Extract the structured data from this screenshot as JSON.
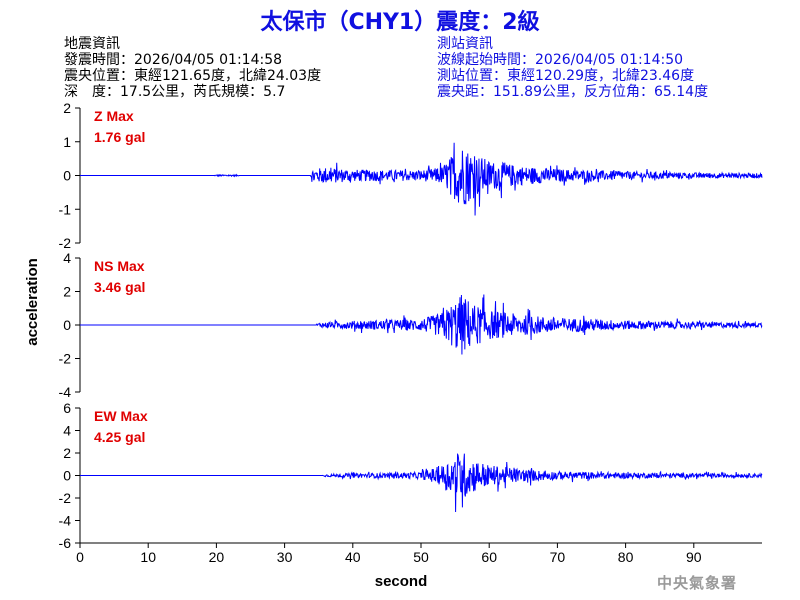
{
  "title": "太保市（CHY1）震度：2級",
  "info_left": [
    "地震資訊",
    "發震時間：2026/04/05 01:14:58",
    "震央位置：東經121.65度，北緯24.03度",
    "深　度：17.5公里，芮氏規模：5.7"
  ],
  "info_right": [
    "測站資訊",
    "波線起始時間：2026/04/05 01:14:50",
    "測站位置：東經120.29度，北緯23.46度",
    "震央距：151.89公里，反方位角：65.14度"
  ],
  "agency": "中央氣象署",
  "colors": {
    "title": "#1010e0",
    "trace": "#0000ff",
    "max_label": "#e00000",
    "axis": "#000000",
    "agency": "#9a9a9a"
  },
  "chart_data": {
    "type": "line",
    "xlabel": "second",
    "ylabel": "acceleration",
    "xlim": [
      0,
      100
    ],
    "xticks": [
      0,
      10,
      20,
      30,
      40,
      50,
      60,
      70,
      80,
      90
    ],
    "grid": false,
    "panels": [
      {
        "name": "Z",
        "max_label": "Z Max",
        "max_value": "1.76 gal",
        "ylim": [
          -2,
          2
        ],
        "yticks": [
          -2,
          -1,
          0,
          1,
          2
        ],
        "series_envelope": [
          {
            "x": 0,
            "amp": 0.0
          },
          {
            "x": 19.5,
            "amp": 0.0
          },
          {
            "x": 20,
            "amp": 0.04
          },
          {
            "x": 23,
            "amp": 0.04
          },
          {
            "x": 23.5,
            "amp": 0.0
          },
          {
            "x": 33.8,
            "amp": 0.0
          },
          {
            "x": 34,
            "amp": 0.35
          },
          {
            "x": 36,
            "amp": 0.45
          },
          {
            "x": 40,
            "amp": 0.32
          },
          {
            "x": 45,
            "amp": 0.3
          },
          {
            "x": 50,
            "amp": 0.28
          },
          {
            "x": 53,
            "amp": 0.45
          },
          {
            "x": 55,
            "amp": 1.3
          },
          {
            "x": 56,
            "amp": 1.76
          },
          {
            "x": 57.5,
            "amp": 1.3
          },
          {
            "x": 60,
            "amp": 0.8
          },
          {
            "x": 65,
            "amp": 0.5
          },
          {
            "x": 70,
            "amp": 0.35
          },
          {
            "x": 80,
            "amp": 0.22
          },
          {
            "x": 90,
            "amp": 0.15
          },
          {
            "x": 100,
            "amp": 0.12
          }
        ]
      },
      {
        "name": "NS",
        "max_label": "NS Max",
        "max_value": "3.46 gal",
        "ylim": [
          -4,
          4
        ],
        "yticks": [
          -4,
          -2,
          0,
          2,
          4
        ],
        "series_envelope": [
          {
            "x": 0,
            "amp": 0.0
          },
          {
            "x": 34.5,
            "amp": 0.0
          },
          {
            "x": 35,
            "amp": 0.25
          },
          {
            "x": 40,
            "amp": 0.45
          },
          {
            "x": 45,
            "amp": 0.55
          },
          {
            "x": 50,
            "amp": 0.65
          },
          {
            "x": 53,
            "amp": 1.3
          },
          {
            "x": 55,
            "amp": 2.7
          },
          {
            "x": 56,
            "amp": 3.46
          },
          {
            "x": 57.5,
            "amp": 2.4
          },
          {
            "x": 60,
            "amp": 1.6
          },
          {
            "x": 65,
            "amp": 1.1
          },
          {
            "x": 70,
            "amp": 0.8
          },
          {
            "x": 80,
            "amp": 0.5
          },
          {
            "x": 90,
            "amp": 0.35
          },
          {
            "x": 100,
            "amp": 0.25
          }
        ]
      },
      {
        "name": "EW",
        "max_label": "EW Max",
        "max_value": "4.25 gal",
        "ylim": [
          -6,
          6
        ],
        "yticks": [
          -6,
          -4,
          -2,
          0,
          2,
          4,
          6
        ],
        "series_envelope": [
          {
            "x": 0,
            "amp": 0.0
          },
          {
            "x": 35.5,
            "amp": 0.0
          },
          {
            "x": 36,
            "amp": 0.2
          },
          {
            "x": 40,
            "amp": 0.35
          },
          {
            "x": 45,
            "amp": 0.4
          },
          {
            "x": 50,
            "amp": 0.55
          },
          {
            "x": 53,
            "amp": 1.6
          },
          {
            "x": 55,
            "amp": 3.4
          },
          {
            "x": 55.8,
            "amp": 4.25
          },
          {
            "x": 57.5,
            "amp": 2.8
          },
          {
            "x": 60,
            "amp": 1.7
          },
          {
            "x": 65,
            "amp": 1.0
          },
          {
            "x": 70,
            "amp": 0.65
          },
          {
            "x": 80,
            "amp": 0.45
          },
          {
            "x": 90,
            "amp": 0.35
          },
          {
            "x": 100,
            "amp": 0.3
          }
        ]
      }
    ]
  }
}
